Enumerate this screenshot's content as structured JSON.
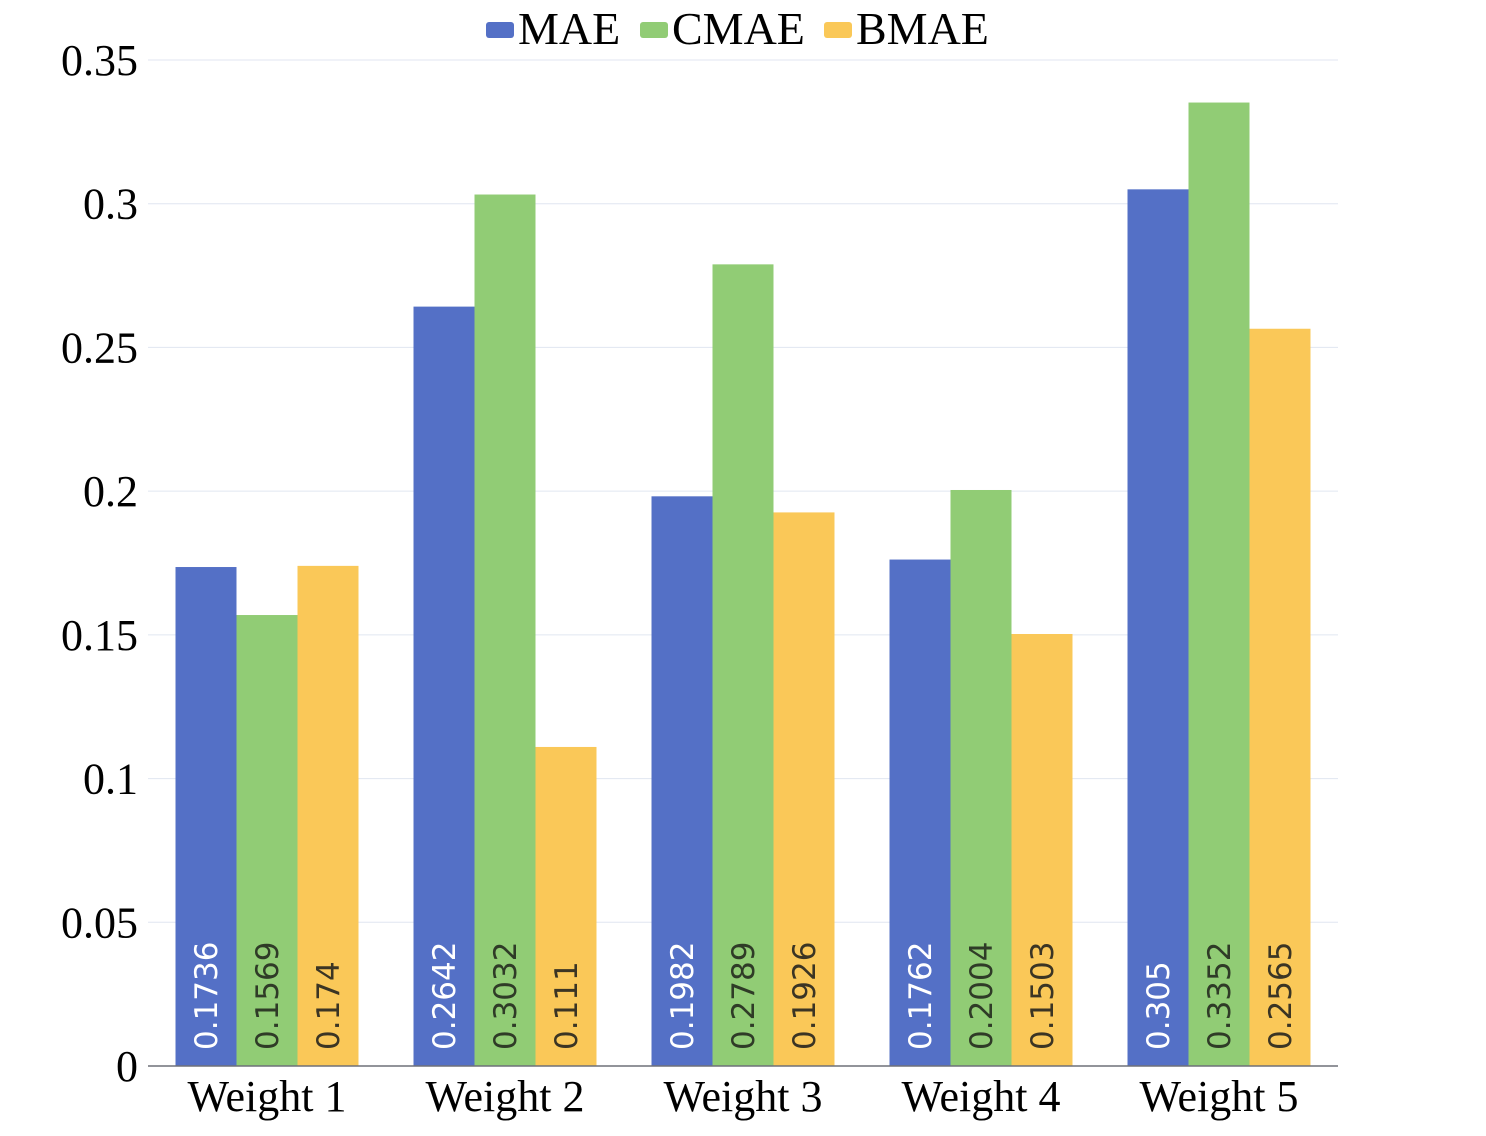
{
  "chart_data": {
    "type": "bar",
    "title": "",
    "xlabel": "",
    "ylabel": "",
    "ylim": [
      0,
      0.35
    ],
    "yticks": [
      "0",
      "0.05",
      "0.1",
      "0.15",
      "0.2",
      "0.25",
      "0.3",
      "0.35"
    ],
    "grid": true,
    "legend_position": "top-center",
    "categories": [
      "Weight 1",
      "Weight 2",
      "Weight 3",
      "Weight 4",
      "Weight 5"
    ],
    "series": [
      {
        "name": "MAE",
        "color": "#5470c6",
        "label_color": "#ffffff",
        "values": [
          0.1736,
          0.2642,
          0.1982,
          0.1762,
          0.305
        ],
        "labels": [
          "0.1736",
          "0.2642",
          "0.1982",
          "0.1762",
          "0.305"
        ]
      },
      {
        "name": "CMAE",
        "color": "#91cc75",
        "label_color": "#2f3b27",
        "values": [
          0.1569,
          0.3032,
          0.2789,
          0.2004,
          0.3352
        ],
        "labels": [
          "0.1569",
          "0.3032",
          "0.2789",
          "0.2004",
          "0.3352"
        ]
      },
      {
        "name": "BMAE",
        "color": "#fac858",
        "label_color": "#3b3524",
        "values": [
          0.174,
          0.111,
          0.1926,
          0.1503,
          0.2565
        ],
        "labels": [
          "0.174",
          "0.111",
          "0.1926",
          "0.1503",
          "0.2565"
        ]
      }
    ]
  }
}
